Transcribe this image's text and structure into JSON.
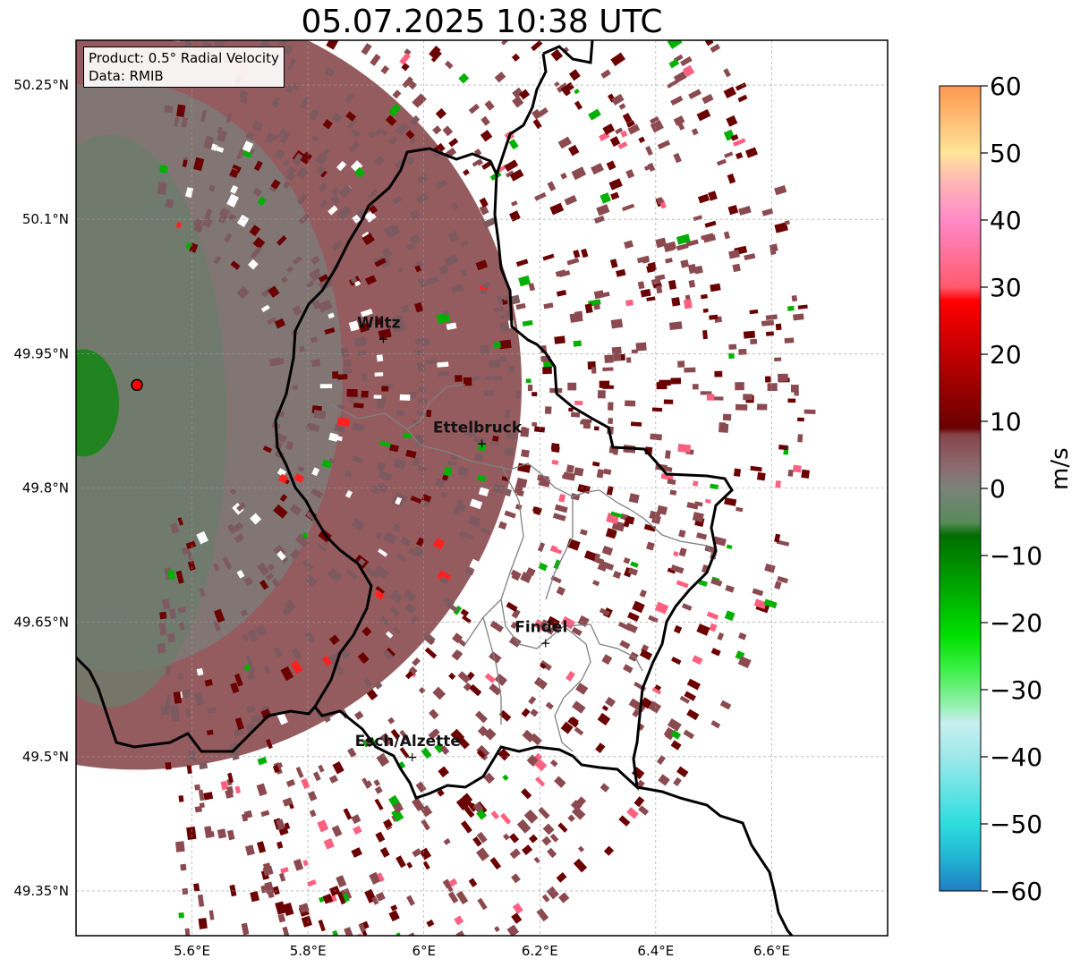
{
  "title": "05.07.2025 10:38 UTC",
  "info": {
    "product": "Product: 0.5° Radial Velocity",
    "source": "Data: RMIB"
  },
  "map": {
    "lon_range": [
      5.4,
      6.8
    ],
    "lat_range": [
      49.3,
      50.3
    ],
    "lon_ticks": [
      "5.6°E",
      "5.8°E",
      "6°E",
      "6.2°E",
      "6.4°E",
      "6.6°E"
    ],
    "lat_ticks": [
      "50.25°N",
      "50.1°N",
      "49.95°N",
      "49.8°N",
      "49.65°N",
      "49.5°N",
      "49.35°N"
    ],
    "gridlines": true,
    "radar_site": {
      "lon": 5.505,
      "lat": 49.915
    },
    "cities": [
      {
        "name": "Wiltz",
        "lon": 5.93,
        "lat": 49.967
      },
      {
        "name": "Ettelbruck",
        "lon": 6.1,
        "lat": 49.85
      },
      {
        "name": "Findel",
        "lon": 6.21,
        "lat": 49.627
      },
      {
        "name": "Esch/Alzette",
        "lon": 5.98,
        "lat": 49.5
      }
    ]
  },
  "colorbar": {
    "label": "m/s",
    "min": -60,
    "max": 60,
    "ticks": [
      "60",
      "50",
      "40",
      "30",
      "20",
      "10",
      "0",
      "−10",
      "−20",
      "−30",
      "−40",
      "−50",
      "−60"
    ],
    "stops": [
      {
        "v": -60,
        "c": "#1f7ec4"
      },
      {
        "v": -55,
        "c": "#22b5d4"
      },
      {
        "v": -50,
        "c": "#2ddede"
      },
      {
        "v": -40,
        "c": "#9fe8ea"
      },
      {
        "v": -35,
        "c": "#c7eff0"
      },
      {
        "v": -32,
        "c": "#8ff0a8"
      },
      {
        "v": -27,
        "c": "#3df048"
      },
      {
        "v": -22,
        "c": "#00e000"
      },
      {
        "v": -15,
        "c": "#00a800"
      },
      {
        "v": -7,
        "c": "#006e00"
      },
      {
        "v": -5,
        "c": "#5a8a5a"
      },
      {
        "v": 0,
        "c": "#7a837a"
      },
      {
        "v": 3,
        "c": "#8b6d72"
      },
      {
        "v": 8,
        "c": "#874448"
      },
      {
        "v": 9,
        "c": "#6a0000"
      },
      {
        "v": 20,
        "c": "#c00000"
      },
      {
        "v": 28,
        "c": "#ff0000"
      },
      {
        "v": 30,
        "c": "#ff5a6e"
      },
      {
        "v": 40,
        "c": "#ff8ac8"
      },
      {
        "v": 45,
        "c": "#ffb0b8"
      },
      {
        "v": 50,
        "c": "#ffe49a"
      },
      {
        "v": 60,
        "c": "#ff9850"
      }
    ]
  },
  "colors": {
    "receding": "#8a4a4f",
    "receding_strong": "#6b0000",
    "approaching": "#6b7d6b",
    "approaching_strong": "#00b000",
    "border": "#000000",
    "inner_border": "#808080"
  }
}
